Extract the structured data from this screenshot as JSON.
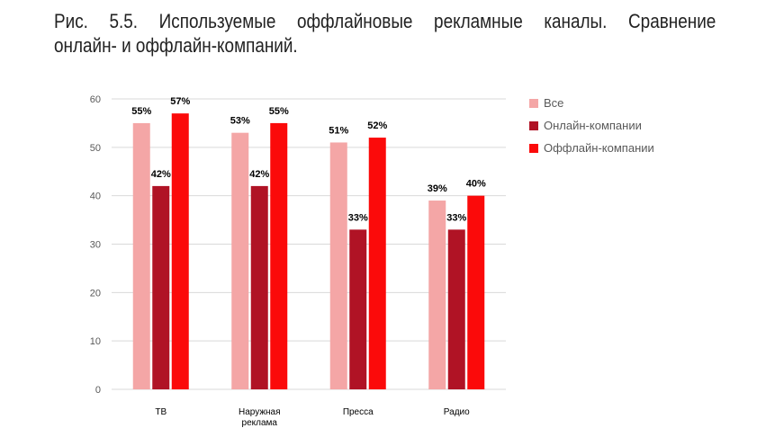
{
  "caption": {
    "line1": "Рис. 5.5. Используемые оффлайновые рекламные каналы. Сравнение",
    "line2": "онлайн- и оффлайн-компаний."
  },
  "chart_data": {
    "type": "bar",
    "categories": [
      "ТВ",
      "Наружная реклама",
      "Пресса",
      "Радио"
    ],
    "category_lines": [
      [
        "ТВ"
      ],
      [
        "Наружная",
        "реклама"
      ],
      [
        "Пресса"
      ],
      [
        "Радио"
      ]
    ],
    "series": [
      {
        "name": "Все",
        "values": [
          55,
          53,
          51,
          39
        ],
        "labels": [
          "55%",
          "53%",
          "51%",
          "39%"
        ],
        "color": "#f4a6a6"
      },
      {
        "name": "Онлайн-компании",
        "values": [
          42,
          42,
          33,
          33
        ],
        "labels": [
          "42%",
          "42%",
          "33%",
          "33%"
        ],
        "color": "#b01325"
      },
      {
        "name": "Оффлайн-компании",
        "values": [
          57,
          55,
          52,
          40
        ],
        "labels": [
          "57%",
          "55%",
          "52%",
          "40%"
        ],
        "color": "#fb0a0a"
      }
    ],
    "ylim": [
      0,
      60
    ],
    "yticks": [
      "0",
      "10",
      "20",
      "30",
      "40",
      "50",
      "60"
    ],
    "grid": true,
    "legend_position": "right"
  }
}
